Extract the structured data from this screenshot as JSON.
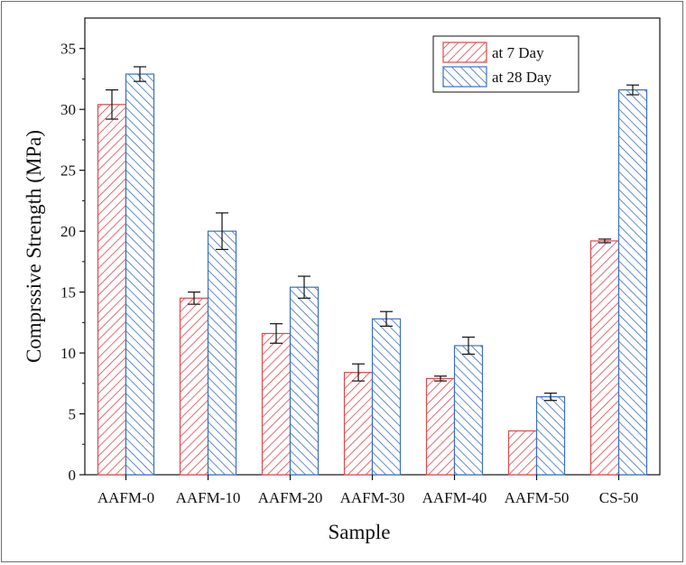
{
  "chart_data": {
    "type": "bar",
    "title": "",
    "xlabel": "Sample",
    "ylabel": "Comprssive Strength (MPa)",
    "ylim": [
      0,
      37.5
    ],
    "yticks": [
      0,
      5,
      10,
      15,
      20,
      25,
      30,
      35
    ],
    "categories": [
      "AAFM-0",
      "AAFM-10",
      "AAFM-20",
      "AAFM-30",
      "AAFM-40",
      "AAFM-50",
      "CS-50"
    ],
    "series": [
      {
        "name": "at 7 Day",
        "color": "#e0474c",
        "values": [
          30.4,
          14.5,
          11.6,
          8.4,
          7.9,
          3.6,
          19.2
        ],
        "errors": [
          1.2,
          0.5,
          0.8,
          0.7,
          0.2,
          0.0,
          0.15
        ]
      },
      {
        "name": "at 28 Day",
        "color": "#3a6fc4",
        "values": [
          32.9,
          20.0,
          15.4,
          12.8,
          10.6,
          6.4,
          31.6
        ],
        "errors": [
          0.6,
          1.5,
          0.9,
          0.6,
          0.7,
          0.3,
          0.4
        ]
      }
    ],
    "grid": false,
    "legend_position": "top-right"
  }
}
